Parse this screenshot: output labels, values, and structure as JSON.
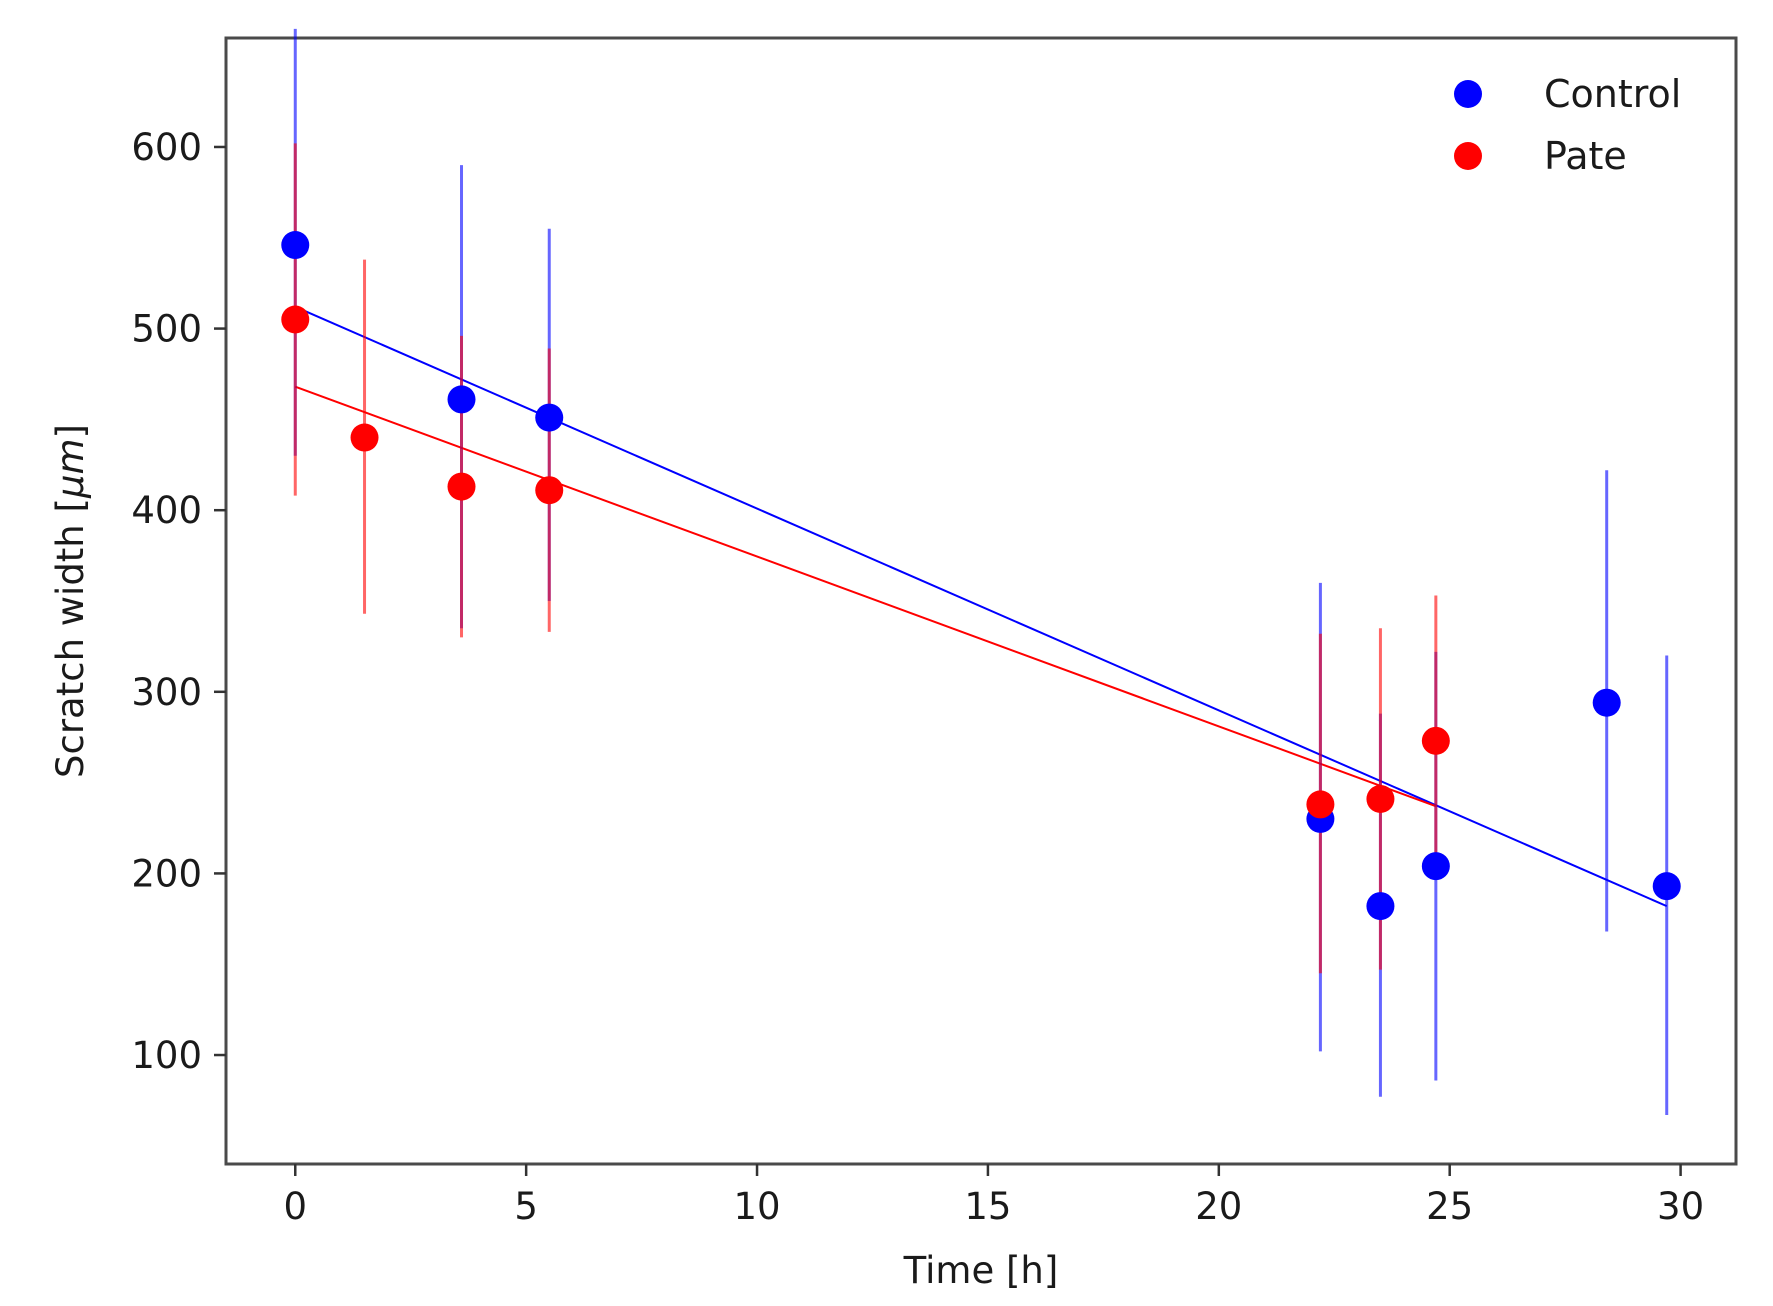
{
  "chart_data": {
    "type": "scatter",
    "title": "",
    "xlabel": "Time [h]",
    "ylabel": "Scratch width [",
    "ylabel_symbol": "μm",
    "ylabel_end": "]",
    "xlim": [
      -1.5,
      31.2
    ],
    "ylim": [
      40,
      660
    ],
    "xticks": [
      0,
      5,
      10,
      15,
      20,
      25,
      30
    ],
    "yticks": [
      100,
      200,
      300,
      400,
      500,
      600
    ],
    "grid": false,
    "legend_position": "top-right",
    "series": [
      {
        "name": "Control",
        "color": "#0000ff",
        "points": [
          {
            "x": 0.0,
            "y": 546,
            "err_low": 430,
            "err_high": 665
          },
          {
            "x": 3.6,
            "y": 461,
            "err_low": 335,
            "err_high": 590
          },
          {
            "x": 5.5,
            "y": 451,
            "err_low": 350,
            "err_high": 555
          },
          {
            "x": 22.2,
            "y": 230,
            "err_low": 102,
            "err_high": 360
          },
          {
            "x": 23.5,
            "y": 182,
            "err_low": 77,
            "err_high": 288
          },
          {
            "x": 24.7,
            "y": 204,
            "err_low": 86,
            "err_high": 322
          },
          {
            "x": 28.4,
            "y": 294,
            "err_low": 168,
            "err_high": 422
          },
          {
            "x": 29.7,
            "y": 193,
            "err_low": 67,
            "err_high": 320
          }
        ],
        "fit": {
          "x": [
            0.0,
            29.7
          ],
          "y": [
            512,
            182
          ]
        }
      },
      {
        "name": "Pate",
        "color": "#ff0000",
        "points": [
          {
            "x": 0.0,
            "y": 505,
            "err_low": 408,
            "err_high": 602
          },
          {
            "x": 1.5,
            "y": 440,
            "err_low": 343,
            "err_high": 538
          },
          {
            "x": 3.6,
            "y": 413,
            "err_low": 330,
            "err_high": 496
          },
          {
            "x": 5.5,
            "y": 411,
            "err_low": 333,
            "err_high": 489
          },
          {
            "x": 22.2,
            "y": 238,
            "err_low": 145,
            "err_high": 332
          },
          {
            "x": 23.5,
            "y": 241,
            "err_low": 147,
            "err_high": 335
          },
          {
            "x": 24.7,
            "y": 273,
            "err_low": 197,
            "err_high": 353
          }
        ],
        "fit": {
          "x": [
            0.0,
            24.7
          ],
          "y": [
            468,
            237
          ]
        }
      }
    ]
  }
}
